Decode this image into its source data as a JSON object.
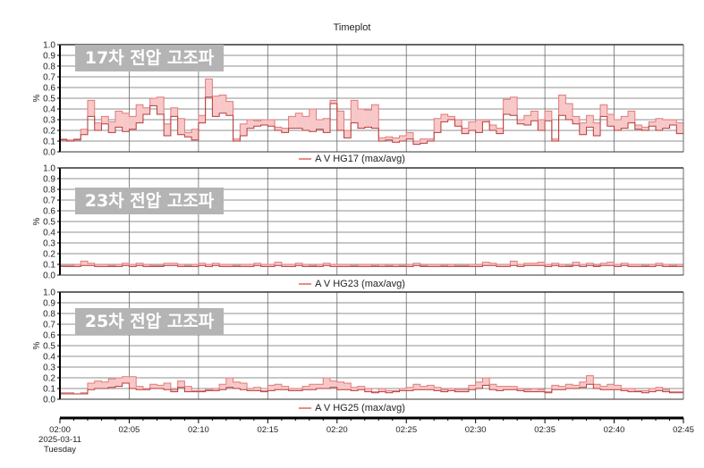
{
  "title": "Timeplot",
  "colors": {
    "fill": "#f8c8c8",
    "max_line": "#e07a7a",
    "avg_line": "#b83a3a",
    "grid": "#6a6a6a",
    "badge": "#b4b4b4"
  },
  "time_axis": {
    "tick_labels": [
      "02:00",
      "02:05",
      "02:10",
      "02:15",
      "02:20",
      "02:25",
      "02:30",
      "02:35",
      "02:40",
      "02:45"
    ],
    "date_label": "2025-03-11",
    "day_label": "Tuesday"
  },
  "chart_data": [
    {
      "type": "area",
      "badge": "17차 전압 고조파",
      "legend": "A V HG17 (max/avg)",
      "ylabel": "%",
      "ylim": [
        0,
        1.0
      ],
      "y_ticks": [
        "0.0",
        "0.1",
        "0.2",
        "0.3",
        "0.4",
        "0.5",
        "0.6",
        "0.7",
        "0.8",
        "0.9",
        "1.0"
      ],
      "x_range": [
        "02:00",
        "02:45"
      ],
      "step_seconds": 30,
      "grid": true,
      "series": [
        {
          "name": "max",
          "values": [
            0.12,
            0.11,
            0.12,
            0.21,
            0.48,
            0.27,
            0.33,
            0.28,
            0.38,
            0.36,
            0.33,
            0.44,
            0.41,
            0.5,
            0.51,
            0.26,
            0.41,
            0.31,
            0.18,
            0.21,
            0.34,
            0.68,
            0.52,
            0.53,
            0.47,
            0.12,
            0.26,
            0.3,
            0.29,
            0.3,
            0.3,
            0.23,
            0.22,
            0.33,
            0.36,
            0.33,
            0.4,
            0.3,
            0.31,
            0.48,
            0.38,
            0.2,
            0.48,
            0.4,
            0.39,
            0.44,
            0.13,
            0.14,
            0.13,
            0.15,
            0.18,
            0.1,
            0.12,
            0.12,
            0.31,
            0.35,
            0.33,
            0.3,
            0.22,
            0.28,
            0.3,
            0.3,
            0.25,
            0.22,
            0.49,
            0.51,
            0.3,
            0.34,
            0.38,
            0.3,
            0.38,
            0.12,
            0.53,
            0.45,
            0.33,
            0.27,
            0.34,
            0.27,
            0.44,
            0.35,
            0.3,
            0.33,
            0.38,
            0.25,
            0.23,
            0.28,
            0.31,
            0.3,
            0.3,
            0.27
          ]
        },
        {
          "name": "avg",
          "values": [
            0.11,
            0.1,
            0.11,
            0.16,
            0.33,
            0.2,
            0.26,
            0.18,
            0.23,
            0.19,
            0.21,
            0.27,
            0.35,
            0.43,
            0.35,
            0.15,
            0.33,
            0.16,
            0.14,
            0.11,
            0.27,
            0.51,
            0.33,
            0.36,
            0.34,
            0.1,
            0.15,
            0.22,
            0.24,
            0.25,
            0.24,
            0.2,
            0.18,
            0.22,
            0.22,
            0.2,
            0.19,
            0.21,
            0.18,
            0.45,
            0.2,
            0.13,
            0.27,
            0.22,
            0.23,
            0.22,
            0.1,
            0.11,
            0.09,
            0.1,
            0.12,
            0.07,
            0.08,
            0.1,
            0.18,
            0.28,
            0.3,
            0.24,
            0.17,
            0.2,
            0.18,
            0.28,
            0.2,
            0.17,
            0.35,
            0.34,
            0.26,
            0.25,
            0.29,
            0.2,
            0.29,
            0.1,
            0.34,
            0.3,
            0.26,
            0.16,
            0.23,
            0.15,
            0.33,
            0.24,
            0.2,
            0.22,
            0.27,
            0.21,
            0.2,
            0.24,
            0.2,
            0.22,
            0.25,
            0.17
          ]
        }
      ]
    },
    {
      "type": "area",
      "badge": "23차 전압 고조파",
      "legend": "A V HG23 (max/avg)",
      "ylabel": "%",
      "ylim": [
        0,
        1.0
      ],
      "y_ticks": [
        "0.0",
        "0.1",
        "0.2",
        "0.3",
        "0.4",
        "0.5",
        "0.6",
        "0.7",
        "0.8",
        "0.9",
        "1.0"
      ],
      "x_range": [
        "02:00",
        "02:45"
      ],
      "step_seconds": 30,
      "grid": true,
      "series": [
        {
          "name": "max",
          "values": [
            0.09,
            0.09,
            0.1,
            0.13,
            0.11,
            0.1,
            0.1,
            0.09,
            0.1,
            0.11,
            0.1,
            0.11,
            0.1,
            0.09,
            0.09,
            0.11,
            0.11,
            0.1,
            0.09,
            0.1,
            0.11,
            0.1,
            0.11,
            0.1,
            0.1,
            0.09,
            0.1,
            0.1,
            0.11,
            0.1,
            0.1,
            0.12,
            0.1,
            0.1,
            0.11,
            0.1,
            0.09,
            0.1,
            0.11,
            0.1,
            0.1,
            0.1,
            0.09,
            0.1,
            0.1,
            0.09,
            0.1,
            0.09,
            0.1,
            0.09,
            0.1,
            0.11,
            0.09,
            0.1,
            0.1,
            0.09,
            0.1,
            0.09,
            0.09,
            0.1,
            0.1,
            0.12,
            0.11,
            0.1,
            0.1,
            0.13,
            0.1,
            0.11,
            0.11,
            0.12,
            0.1,
            0.11,
            0.1,
            0.09,
            0.12,
            0.1,
            0.11,
            0.09,
            0.11,
            0.12,
            0.1,
            0.11,
            0.1,
            0.1,
            0.09,
            0.1,
            0.11,
            0.1,
            0.09,
            0.1
          ]
        },
        {
          "name": "avg",
          "values": [
            0.08,
            0.08,
            0.08,
            0.09,
            0.09,
            0.08,
            0.08,
            0.08,
            0.08,
            0.09,
            0.08,
            0.09,
            0.08,
            0.08,
            0.08,
            0.09,
            0.09,
            0.08,
            0.08,
            0.08,
            0.09,
            0.08,
            0.09,
            0.08,
            0.08,
            0.08,
            0.08,
            0.08,
            0.09,
            0.08,
            0.08,
            0.09,
            0.08,
            0.08,
            0.09,
            0.08,
            0.08,
            0.08,
            0.09,
            0.08,
            0.08,
            0.08,
            0.08,
            0.08,
            0.08,
            0.08,
            0.08,
            0.08,
            0.08,
            0.08,
            0.08,
            0.09,
            0.08,
            0.08,
            0.08,
            0.08,
            0.08,
            0.08,
            0.08,
            0.08,
            0.08,
            0.09,
            0.09,
            0.08,
            0.08,
            0.09,
            0.08,
            0.09,
            0.09,
            0.09,
            0.08,
            0.09,
            0.08,
            0.08,
            0.09,
            0.08,
            0.09,
            0.08,
            0.09,
            0.09,
            0.08,
            0.09,
            0.08,
            0.08,
            0.08,
            0.08,
            0.09,
            0.08,
            0.08,
            0.08
          ]
        }
      ]
    },
    {
      "type": "area",
      "badge": "25차 전압 고조파",
      "legend": "A V HG25 (max/avg)",
      "ylabel": "%",
      "ylim": [
        0,
        1.0
      ],
      "y_ticks": [
        "0.0",
        "0.1",
        "0.2",
        "0.3",
        "0.4",
        "0.5",
        "0.6",
        "0.7",
        "0.8",
        "0.9",
        "1.0"
      ],
      "x_range": [
        "02:00",
        "02:45"
      ],
      "step_seconds": 30,
      "grid": true,
      "series": [
        {
          "name": "max",
          "values": [
            0.06,
            0.06,
            0.05,
            0.06,
            0.15,
            0.17,
            0.16,
            0.19,
            0.2,
            0.21,
            0.21,
            0.12,
            0.1,
            0.14,
            0.13,
            0.15,
            0.09,
            0.17,
            0.12,
            0.08,
            0.08,
            0.09,
            0.1,
            0.14,
            0.2,
            0.16,
            0.15,
            0.1,
            0.11,
            0.08,
            0.13,
            0.14,
            0.12,
            0.1,
            0.1,
            0.12,
            0.14,
            0.14,
            0.2,
            0.17,
            0.16,
            0.15,
            0.11,
            0.12,
            0.1,
            0.07,
            0.1,
            0.08,
            0.08,
            0.1,
            0.11,
            0.14,
            0.12,
            0.13,
            0.11,
            0.09,
            0.1,
            0.09,
            0.09,
            0.13,
            0.16,
            0.2,
            0.14,
            0.12,
            0.12,
            0.12,
            0.1,
            0.09,
            0.1,
            0.09,
            0.07,
            0.13,
            0.12,
            0.14,
            0.13,
            0.16,
            0.22,
            0.14,
            0.12,
            0.14,
            0.13,
            0.1,
            0.1,
            0.08,
            0.08,
            0.1,
            0.11,
            0.09,
            0.07,
            0.07
          ]
        },
        {
          "name": "avg",
          "values": [
            0.05,
            0.05,
            0.05,
            0.05,
            0.09,
            0.1,
            0.1,
            0.11,
            0.12,
            0.15,
            0.1,
            0.09,
            0.09,
            0.1,
            0.1,
            0.09,
            0.07,
            0.11,
            0.07,
            0.07,
            0.07,
            0.08,
            0.08,
            0.09,
            0.11,
            0.1,
            0.09,
            0.08,
            0.08,
            0.07,
            0.08,
            0.09,
            0.09,
            0.08,
            0.08,
            0.09,
            0.09,
            0.1,
            0.1,
            0.11,
            0.09,
            0.09,
            0.08,
            0.09,
            0.07,
            0.06,
            0.07,
            0.06,
            0.07,
            0.08,
            0.08,
            0.09,
            0.09,
            0.09,
            0.08,
            0.07,
            0.08,
            0.07,
            0.07,
            0.09,
            0.1,
            0.13,
            0.09,
            0.08,
            0.09,
            0.09,
            0.08,
            0.07,
            0.07,
            0.07,
            0.06,
            0.09,
            0.09,
            0.1,
            0.1,
            0.11,
            0.14,
            0.1,
            0.09,
            0.09,
            0.09,
            0.08,
            0.07,
            0.07,
            0.06,
            0.07,
            0.08,
            0.07,
            0.06,
            0.06
          ]
        }
      ]
    }
  ]
}
